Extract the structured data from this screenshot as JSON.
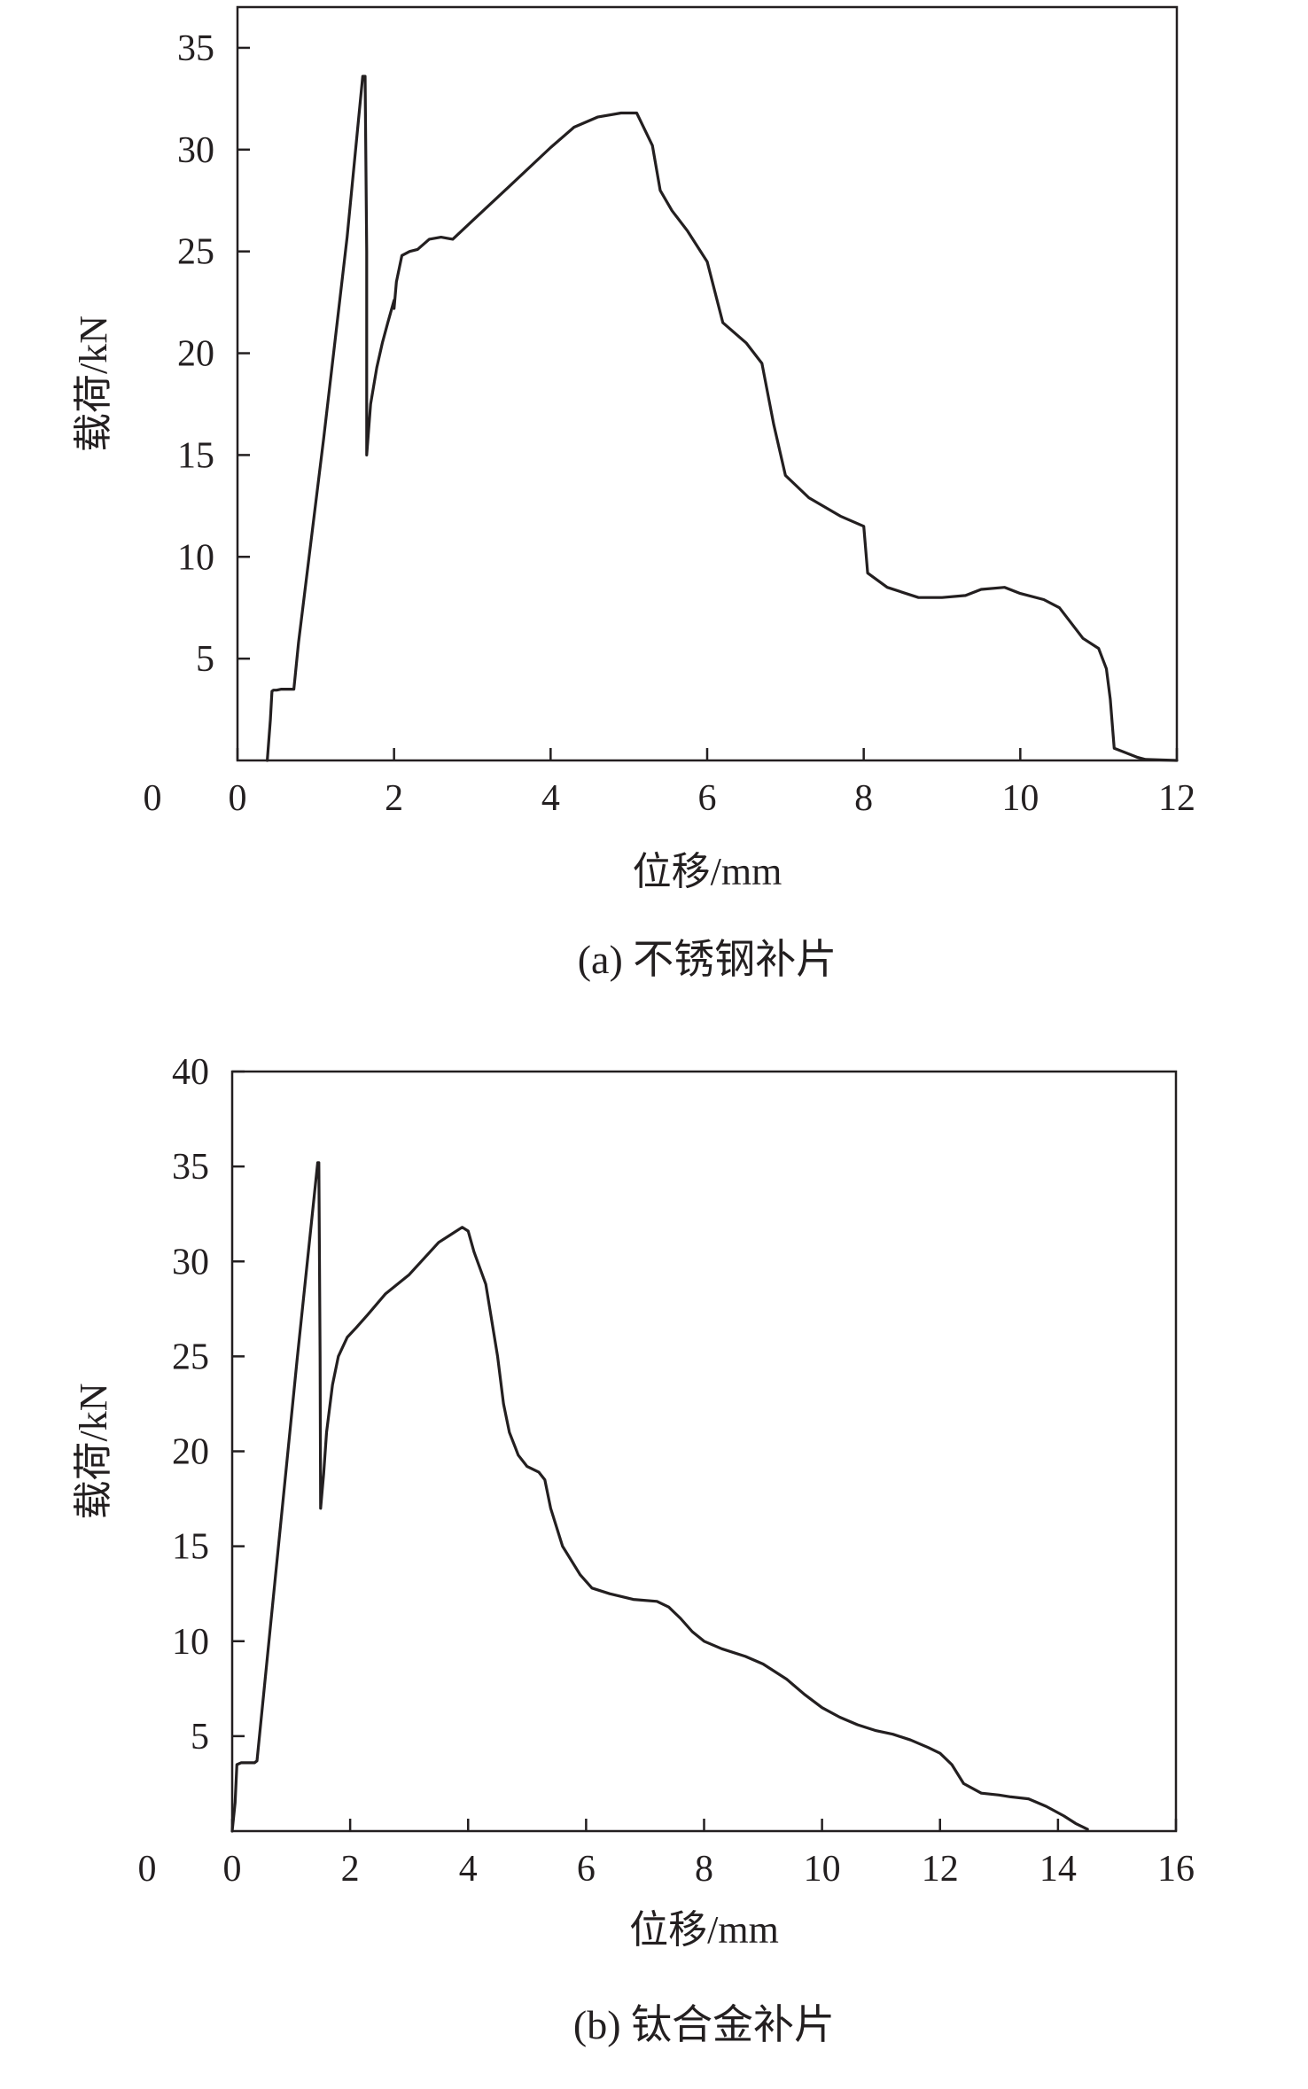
{
  "chart_data": [
    {
      "type": "line",
      "title": "",
      "caption": "(a) 不锈钢补片",
      "xlabel": "位移/mm",
      "ylabel": "载荷/kN",
      "xlim": [
        0,
        12
      ],
      "ylim": [
        0,
        37
      ],
      "xticks": [
        0,
        2,
        4,
        6,
        8,
        10,
        12
      ],
      "yticks": [
        5,
        10,
        15,
        20,
        25,
        30,
        35
      ],
      "ytick_zero_label": "0",
      "grid": false,
      "series": [
        {
          "color": "#231f20",
          "x": [
            0.38,
            0.42,
            0.44,
            0.46,
            0.5,
            0.56,
            0.62,
            0.68,
            0.72,
            0.78,
            1.1,
            1.4,
            1.6,
            1.63,
            1.65,
            1.65,
            1.7,
            1.78,
            1.85,
            1.92,
            2.0
          ],
          "y": [
            0.0,
            2.0,
            3.4,
            3.45,
            3.45,
            3.5,
            3.5,
            3.5,
            3.5,
            5.8,
            15.8,
            25.7,
            33.6,
            33.6,
            25.0,
            15.0,
            17.5,
            19.3,
            20.5,
            21.5,
            22.6
          ]
        },
        {
          "color": "#231f20",
          "x": [
            2.0,
            2.03,
            2.1,
            2.2,
            2.3,
            2.45,
            2.6,
            2.75,
            3.0,
            3.5,
            4.0,
            4.3,
            4.6,
            4.9,
            5.1,
            5.3,
            5.4,
            5.55,
            5.75,
            6.0,
            6.2,
            6.5,
            6.7,
            6.85,
            7.0,
            7.3,
            7.7,
            8.0,
            8.05,
            8.3,
            8.7,
            9.0,
            9.3,
            9.5,
            9.8,
            10.0,
            10.3,
            10.5,
            10.8,
            11.0,
            11.1,
            11.15,
            11.2,
            11.5,
            11.6,
            12.0
          ],
          "y": [
            22.2,
            23.5,
            24.8,
            25.0,
            25.1,
            25.6,
            25.7,
            25.6,
            26.5,
            28.3,
            30.1,
            31.1,
            31.6,
            31.8,
            31.8,
            30.2,
            28.0,
            27.0,
            26.0,
            24.5,
            21.5,
            20.5,
            19.5,
            16.5,
            14.0,
            12.9,
            12.0,
            11.5,
            9.2,
            8.5,
            8.0,
            8.0,
            8.1,
            8.4,
            8.5,
            8.2,
            7.9,
            7.5,
            6.0,
            5.5,
            4.5,
            3.0,
            0.6,
            0.15,
            0.05,
            0.0
          ]
        }
      ]
    },
    {
      "type": "line",
      "title": "",
      "caption": "(b) 钛合金补片",
      "xlabel": "位移/mm",
      "ylabel": "载荷/kN",
      "xlim": [
        0,
        16
      ],
      "ylim": [
        0,
        40
      ],
      "xticks": [
        0,
        2,
        4,
        6,
        8,
        10,
        12,
        14,
        16
      ],
      "yticks": [
        5,
        10,
        15,
        20,
        25,
        30,
        35,
        40
      ],
      "ytick_zero_label": "0",
      "grid": false,
      "series": [
        {
          "color": "#231f20",
          "x": [
            0.0,
            0.05,
            0.08,
            0.15,
            0.3,
            0.38,
            0.42,
            1.1,
            1.45,
            1.47,
            1.49,
            1.5,
            1.55,
            1.6,
            1.7,
            1.8,
            1.95,
            2.1,
            2.3,
            2.6,
            3.0,
            3.5,
            3.9,
            4.0,
            4.1,
            4.3,
            4.5,
            4.6,
            4.7,
            4.8,
            4.85,
            5.0,
            5.2,
            5.3,
            5.4,
            5.6,
            5.9,
            6.1,
            6.4,
            6.8,
            7.2,
            7.4,
            7.6,
            7.8,
            8.0,
            8.3,
            8.7,
            9.0,
            9.4,
            9.7,
            10.0,
            10.3,
            10.6,
            10.9,
            11.2,
            11.5,
            11.8,
            12.0,
            12.2,
            12.4,
            12.7,
            13.0,
            13.2,
            13.5,
            13.8,
            14.1,
            14.3,
            14.5
          ],
          "y": [
            0.0,
            1.5,
            3.5,
            3.6,
            3.6,
            3.6,
            3.7,
            24.8,
            35.2,
            35.2,
            25.0,
            17.0,
            18.8,
            21.0,
            23.5,
            25.0,
            26.0,
            26.5,
            27.2,
            28.3,
            29.3,
            31.0,
            31.8,
            31.6,
            30.5,
            28.8,
            25.0,
            22.5,
            21.0,
            20.2,
            19.8,
            19.2,
            18.9,
            18.5,
            17.0,
            15.0,
            13.5,
            12.8,
            12.5,
            12.2,
            12.1,
            11.8,
            11.2,
            10.5,
            10.0,
            9.6,
            9.2,
            8.8,
            8.0,
            7.2,
            6.5,
            6.0,
            5.6,
            5.3,
            5.1,
            4.8,
            4.4,
            4.1,
            3.5,
            2.5,
            2.0,
            1.9,
            1.8,
            1.7,
            1.3,
            0.8,
            0.4,
            0.1
          ]
        }
      ]
    }
  ]
}
